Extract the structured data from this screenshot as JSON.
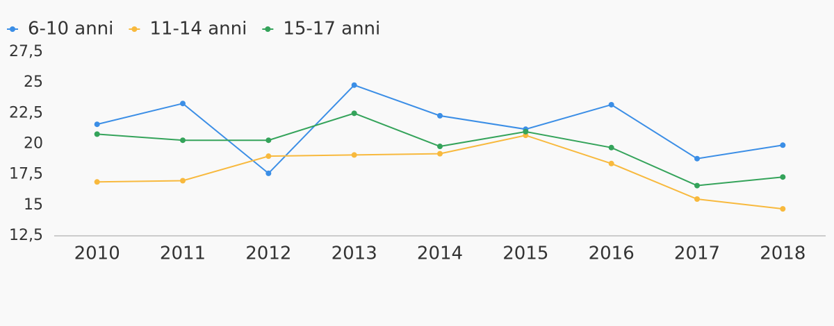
{
  "chart_data": {
    "type": "line",
    "categories": [
      "2010",
      "2011",
      "2012",
      "2013",
      "2014",
      "2015",
      "2016",
      "2017",
      "2018"
    ],
    "series": [
      {
        "name": "6-10 anni",
        "color": "#3b8ee6",
        "values": [
          21.6,
          23.3,
          17.6,
          24.8,
          22.3,
          21.2,
          23.2,
          18.8,
          19.9
        ]
      },
      {
        "name": "11-14 anni",
        "color": "#f8b93d",
        "values": [
          16.9,
          17.0,
          19.0,
          19.1,
          19.2,
          20.7,
          18.4,
          15.5,
          14.7
        ]
      },
      {
        "name": "15-17 anni",
        "color": "#34a35a",
        "values": [
          20.8,
          20.3,
          20.3,
          22.5,
          19.8,
          21.0,
          19.7,
          16.6,
          17.3
        ]
      }
    ],
    "ylim": [
      12.5,
      27.5
    ],
    "yticks": [
      {
        "value": 12.5,
        "label": "12,5"
      },
      15,
      {
        "value": 17.5,
        "label": "17,5"
      },
      20,
      {
        "value": 22.5,
        "label": "22,5"
      },
      25,
      {
        "value": 27.5,
        "label": "27,5"
      }
    ],
    "grid": false
  }
}
